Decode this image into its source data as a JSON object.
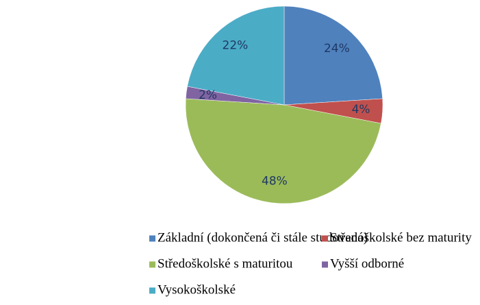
{
  "chart_data": {
    "type": "pie",
    "categories": [
      "Základní (dokončená či stále studovaná)",
      "Středoškolské bez maturity",
      "Středoškolské s maturitou",
      "Vyšší odborné",
      "Vysokoškolské"
    ],
    "values": [
      24,
      4,
      48,
      2,
      22
    ],
    "value_labels": [
      "24%",
      "4%",
      "48%",
      "2%",
      "22%"
    ],
    "colors": [
      "#4f81bd",
      "#c0504d",
      "#9bbb59",
      "#8064a2",
      "#4bacc6"
    ],
    "legend": "bottom"
  }
}
